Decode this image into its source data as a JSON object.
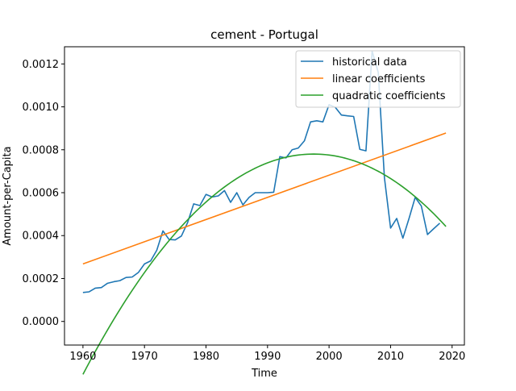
{
  "chart_data": {
    "type": "line",
    "title": "cement - Portugal",
    "xlabel": "Time",
    "ylabel": "Amount-per-Capita",
    "xlim": [
      1957,
      2022
    ],
    "ylim": [
      -0.00011,
      0.00128
    ],
    "xticks": [
      1960,
      1970,
      1980,
      1990,
      2000,
      2010,
      2020
    ],
    "xtick_labels": [
      "1960",
      "1970",
      "1980",
      "1990",
      "2000",
      "2010",
      "2020"
    ],
    "yticks": [
      0,
      0.0002,
      0.0004,
      0.0006,
      0.0008,
      0.001,
      0.0012
    ],
    "ytick_labels": [
      "0.0000",
      "0.0002",
      "0.0004",
      "0.0006",
      "0.0008",
      "0.0010",
      "0.0012"
    ],
    "legend_position": "top-right",
    "series": [
      {
        "name": "historical data",
        "color": "#1f77b4",
        "x": [
          1960,
          1961,
          1962,
          1963,
          1964,
          1965,
          1966,
          1967,
          1968,
          1969,
          1970,
          1971,
          1972,
          1973,
          1974,
          1975,
          1976,
          1977,
          1978,
          1979,
          1980,
          1981,
          1982,
          1983,
          1984,
          1985,
          1986,
          1987,
          1988,
          1989,
          1990,
          1991,
          1992,
          1993,
          1994,
          1995,
          1996,
          1997,
          1998,
          1999,
          2000,
          2001,
          2002,
          2003,
          2004,
          2005,
          2006,
          2007,
          2008,
          2009,
          2010,
          2011,
          2012,
          2013,
          2014,
          2015,
          2016,
          2017,
          2018
        ],
        "values": [
          0.000135,
          0.000138,
          0.000155,
          0.000158,
          0.000178,
          0.000185,
          0.00019,
          0.000205,
          0.000207,
          0.000228,
          0.000268,
          0.000282,
          0.000332,
          0.000422,
          0.000382,
          0.00038,
          0.000398,
          0.00046,
          0.000548,
          0.00054,
          0.000592,
          0.00058,
          0.000585,
          0.00061,
          0.000555,
          0.0006,
          0.000543,
          0.000578,
          0.0006,
          0.0006,
          0.0006,
          0.000602,
          0.000768,
          0.000762,
          0.0008,
          0.000808,
          0.000842,
          0.00093,
          0.000935,
          0.00093,
          0.00101,
          0.000998,
          0.000962,
          0.000958,
          0.000955,
          0.000802,
          0.000795,
          0.00126,
          0.00116,
          0.00067,
          0.000435,
          0.00048,
          0.000388,
          0.00048,
          0.000578,
          0.000538,
          0.000405,
          0.000432,
          0.000458
        ]
      },
      {
        "name": "linear coefficients",
        "color": "#ff7f0e",
        "x": [
          1960,
          2019
        ],
        "values": [
          0.000268,
          0.000878
        ]
      },
      {
        "name": "quadratic coefficients",
        "color": "#2ca02c",
        "curve": {
          "a": -7.3e-07,
          "vertex_x": 1997.5,
          "vertex_y": 0.00078
        },
        "x_range": [
          1960,
          2019
        ]
      }
    ]
  }
}
